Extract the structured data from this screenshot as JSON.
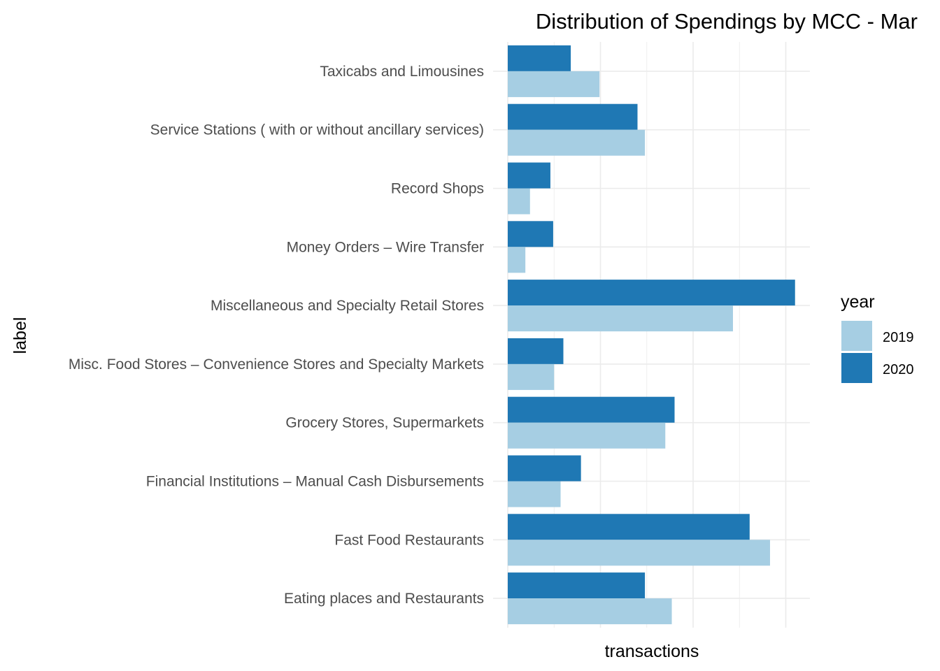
{
  "chart_data": {
    "type": "bar",
    "orientation": "horizontal",
    "title": "Distribution of Spendings by MCC - Mar",
    "xlabel": "transactions",
    "ylabel": "label",
    "x_tick_labels_shown": false,
    "grid": true,
    "legend": {
      "title": "year",
      "placement": "right"
    },
    "xlim": [
      0,
      3.25
    ],
    "categories": [
      "Taxicabs and Limousines",
      "Service Stations ( with or without ancillary services)",
      "Record Shops",
      "Money Orders – Wire Transfer",
      "Miscellaneous and Specialty Retail Stores",
      "Misc. Food Stores – Convenience Stores and Specialty Markets",
      "Grocery Stores, Supermarkets",
      "Financial Institutions – Manual Cash Disbursements",
      "Fast Food Restaurants",
      "Eating places and Restaurants"
    ],
    "series": [
      {
        "name": "2019",
        "color": "#a6cee3",
        "values": [
          0.99,
          1.48,
          0.24,
          0.19,
          2.43,
          0.5,
          1.7,
          0.57,
          2.83,
          1.77
        ]
      },
      {
        "name": "2020",
        "color": "#1f78b4",
        "values": [
          0.68,
          1.4,
          0.46,
          0.49,
          3.1,
          0.6,
          1.8,
          0.79,
          2.61,
          1.48
        ]
      }
    ]
  }
}
